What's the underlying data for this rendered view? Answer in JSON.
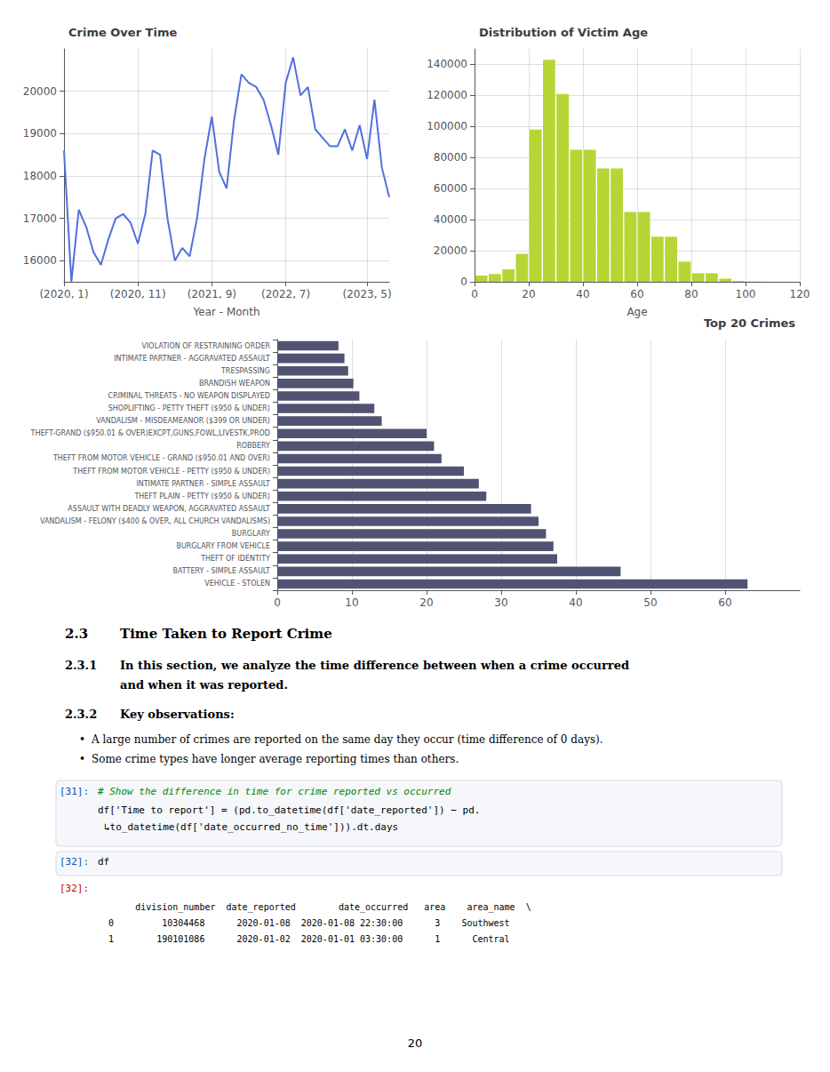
{
  "chart_data": [
    {
      "type": "line",
      "title": "Crime Over Time",
      "xlabel": "Year - Month",
      "categories": [
        "(2020, 1)",
        null,
        null,
        null,
        null,
        null,
        null,
        null,
        null,
        null,
        "(2020, 11)",
        null,
        null,
        null,
        null,
        null,
        null,
        null,
        null,
        null,
        "(2021, 9)",
        null,
        null,
        null,
        null,
        null,
        null,
        null,
        null,
        null,
        "(2022, 7)",
        null,
        null,
        null,
        null,
        null,
        null,
        null,
        null,
        null,
        null,
        "(2023, 5)",
        null,
        null,
        null
      ],
      "values": [
        18600,
        15500,
        17200,
        16800,
        16200,
        15900,
        16500,
        17000,
        17100,
        16900,
        16400,
        17100,
        18600,
        18500,
        17000,
        16000,
        16300,
        16100,
        17000,
        18400,
        19400,
        18100,
        17700,
        19300,
        20400,
        20200,
        20100,
        19800,
        19200,
        18500,
        20200,
        20800,
        19900,
        20100,
        19100,
        18900,
        18700,
        18700,
        19100,
        18600,
        19200,
        18400,
        19800,
        18200,
        17500
      ],
      "ylim": [
        15500,
        21000
      ],
      "yticks": [
        16000,
        17000,
        18000,
        19000,
        20000
      ],
      "grid": true
    },
    {
      "type": "histogram",
      "title": "Distribution of Victim Age",
      "xlabel": "Age",
      "bins": [
        0,
        5,
        10,
        15,
        20,
        25,
        30,
        35,
        40,
        45,
        50,
        55,
        60,
        65,
        70,
        75,
        80,
        85,
        90,
        95,
        100,
        105,
        110,
        115,
        120
      ],
      "values": [
        4000,
        5000,
        8000,
        18000,
        98000,
        143000,
        121000,
        85000,
        85000,
        73000,
        73000,
        45000,
        45000,
        29000,
        29000,
        13000,
        5500,
        5500,
        2000,
        500,
        200,
        100,
        50,
        20
      ],
      "xlim": [
        0,
        120
      ],
      "xticks": [
        0,
        20,
        40,
        60,
        80,
        100,
        120
      ],
      "ylim": [
        0,
        150000
      ],
      "yticks": [
        0,
        20000,
        40000,
        60000,
        80000,
        100000,
        120000,
        140000
      ],
      "grid": true
    },
    {
      "type": "bar",
      "orientation": "horizontal",
      "title": "Top 20 Crimes",
      "categories": [
        "VIOLATION OF RESTRAINING ORDER",
        "INTIMATE PARTNER - AGGRAVATED ASSAULT",
        "TRESPASSING",
        "BRANDISH WEAPON",
        "CRIMINAL THREATS - NO WEAPON DISPLAYED",
        "SHOPLIFTING - PETTY THEFT ($950 & UNDER)",
        "VANDALISM - MISDEAMEANOR ($399 OR UNDER)",
        "THEFT-GRAND ($950.01 & OVER)EXCPT,GUNS,FOWL,LIVESTK,PROD",
        "ROBBERY",
        "THEFT FROM MOTOR VEHICLE - GRAND ($950.01 AND OVER)",
        "THEFT FROM MOTOR VEHICLE - PETTY ($950 & UNDER)",
        "INTIMATE PARTNER - SIMPLE ASSAULT",
        "THEFT PLAIN - PETTY ($950 & UNDER)",
        "ASSAULT WITH DEADLY WEAPON, AGGRAVATED ASSAULT",
        "VANDALISM - FELONY ($400 & OVER, ALL CHURCH VANDALISMS)",
        "BURGLARY",
        "BURGLARY FROM VEHICLE",
        "THEFT OF IDENTITY",
        "BATTERY - SIMPLE ASSAULT",
        "VEHICLE - STOLEN"
      ],
      "values": [
        8.2,
        9.0,
        9.5,
        10.2,
        11.0,
        13.0,
        14.0,
        20.0,
        21.0,
        22.0,
        25.0,
        27.0,
        28.0,
        34.0,
        35.0,
        36.0,
        37.0,
        37.5,
        46.0,
        63.0
      ],
      "xlim": [
        0,
        70
      ],
      "xticks": [
        0,
        10,
        20,
        30,
        40,
        50,
        60
      ],
      "grid": true
    }
  ],
  "annotations": [
    "2.3",
    "Time Taken to Report Crime",
    "2.3.1",
    "In this section, we analyze the time difference between when a crime occurred",
    "and when it was reported.",
    "2.3.2",
    "Key observations:",
    "•",
    "A large number of crimes are reported on the same day they occur (time difference of 0 days).",
    "•",
    "Some crime types have longer average reporting times than others.",
    "[31]:",
    "# Show the difference in time for crime reported vs occurred",
    "df['Time to report'] = (pd.to_datetime(df['date_reported']) − pd.",
    "↳to_datetime(df['date_occurred_no_time'])).dt.days",
    "[32]:",
    "df",
    "[32]:",
    "       division_number  date_reported        date_occurred   area    area_name  \\",
    "  0         10304468      2020-01-08  2020-01-08 22:30:00      3    Southwest",
    "  1        190101086      2020-01-02  2020-01-01 03:30:00      1      Central",
    "20"
  ]
}
